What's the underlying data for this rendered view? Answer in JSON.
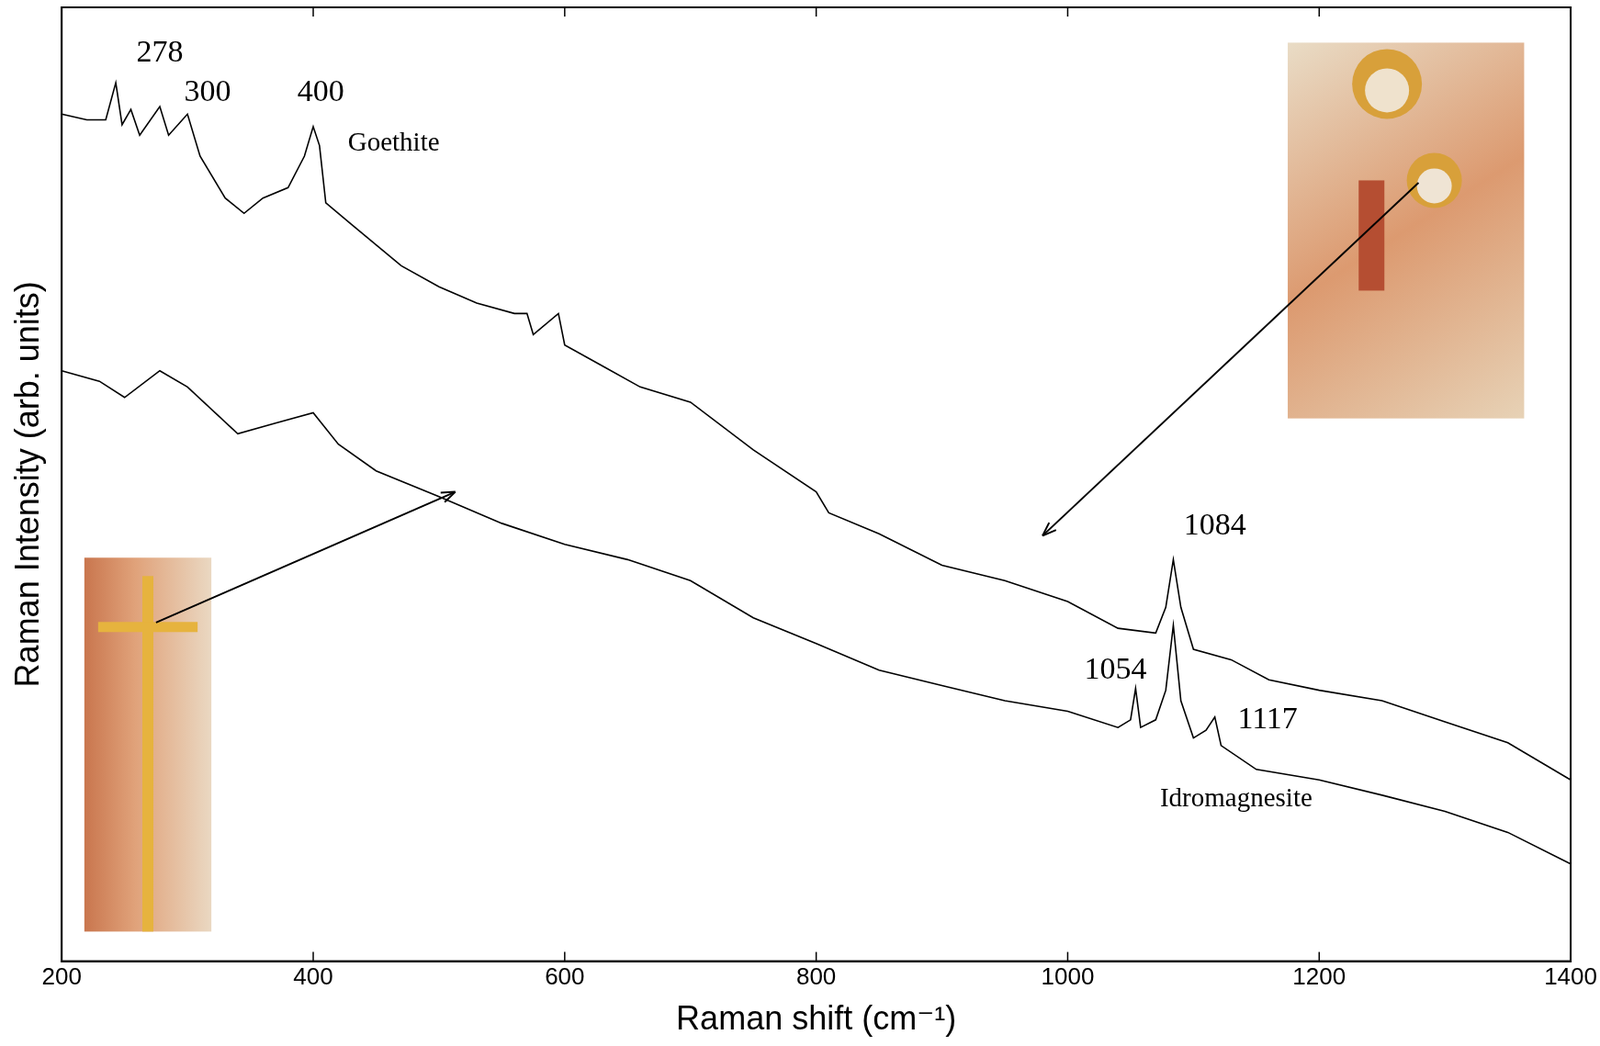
{
  "chart_data": {
    "type": "line",
    "x_label": "Raman shift (cm⁻¹)",
    "y_label": "Raman Intensity (arb. units)",
    "xlim": [
      200,
      1400
    ],
    "xticks": [
      200,
      400,
      600,
      800,
      1000,
      1200,
      1400
    ],
    "ylim": [
      0,
      100
    ],
    "tick_labels": "x",
    "grid": false,
    "line_style": "solid",
    "marker": "none",
    "series": [
      {
        "color": "#000000",
        "x": [
          200,
          220,
          235,
          243,
          248,
          255,
          262,
          278,
          285,
          300,
          310,
          330,
          345,
          360,
          380,
          393,
          400,
          405,
          410,
          430,
          450,
          470,
          500,
          530,
          560,
          570,
          575,
          595,
          600,
          630,
          660,
          700,
          750,
          800,
          810,
          850,
          900,
          950,
          1000,
          1040,
          1070,
          1078,
          1084,
          1090,
          1100,
          1130,
          1160,
          1200,
          1250,
          1300,
          1350,
          1400
        ],
        "values": [
          88.8,
          88.2,
          88.2,
          92.1,
          87.7,
          89.3,
          86.6,
          89.6,
          86.6,
          88.8,
          84.4,
          80.0,
          78.4,
          80.0,
          81.1,
          84.4,
          87.5,
          85.5,
          79.5,
          77.3,
          75.1,
          72.9,
          70.7,
          69.0,
          67.9,
          67.9,
          65.7,
          67.9,
          64.6,
          62.4,
          60.2,
          58.6,
          53.6,
          49.2,
          47.0,
          44.8,
          41.5,
          39.9,
          37.7,
          34.9,
          34.4,
          37.1,
          42.1,
          37.1,
          32.7,
          31.6,
          29.5,
          28.4,
          27.3,
          25.1,
          22.9,
          19.0
        ]
      },
      {
        "color": "#000000",
        "x": [
          200,
          230,
          250,
          278,
          300,
          340,
          370,
          400,
          420,
          450,
          500,
          550,
          600,
          650,
          700,
          750,
          800,
          850,
          900,
          950,
          1000,
          1040,
          1050,
          1054,
          1058,
          1070,
          1078,
          1084,
          1090,
          1100,
          1110,
          1117,
          1122,
          1150,
          1200,
          1250,
          1300,
          1350,
          1400
        ],
        "values": [
          61.9,
          60.8,
          59.1,
          61.9,
          60.2,
          55.3,
          56.4,
          57.5,
          54.2,
          51.4,
          48.7,
          45.9,
          43.7,
          42.1,
          39.9,
          36.0,
          33.3,
          30.5,
          28.9,
          27.3,
          26.2,
          24.5,
          25.3,
          28.6,
          24.5,
          25.3,
          28.4,
          35.2,
          27.3,
          23.4,
          24.2,
          25.6,
          22.6,
          20.1,
          19.0,
          17.4,
          15.7,
          13.5,
          10.2
        ]
      }
    ],
    "annotations": [
      {
        "text": "278",
        "x": 278,
        "y": 95.2
      },
      {
        "text": "300",
        "x": 316,
        "y": 91.0
      },
      {
        "text": "400",
        "x": 406,
        "y": 91.0
      },
      {
        "text": "Goethite",
        "x": 464,
        "y": 85.7
      },
      {
        "text": "1084",
        "x": 1117,
        "y": 45.6
      },
      {
        "text": "1054",
        "x": 1038,
        "y": 30.5
      },
      {
        "text": "1117",
        "x": 1159,
        "y": 25.3
      },
      {
        "text": "Idromagnesite",
        "x": 1134,
        "y": 17.0
      }
    ]
  }
}
